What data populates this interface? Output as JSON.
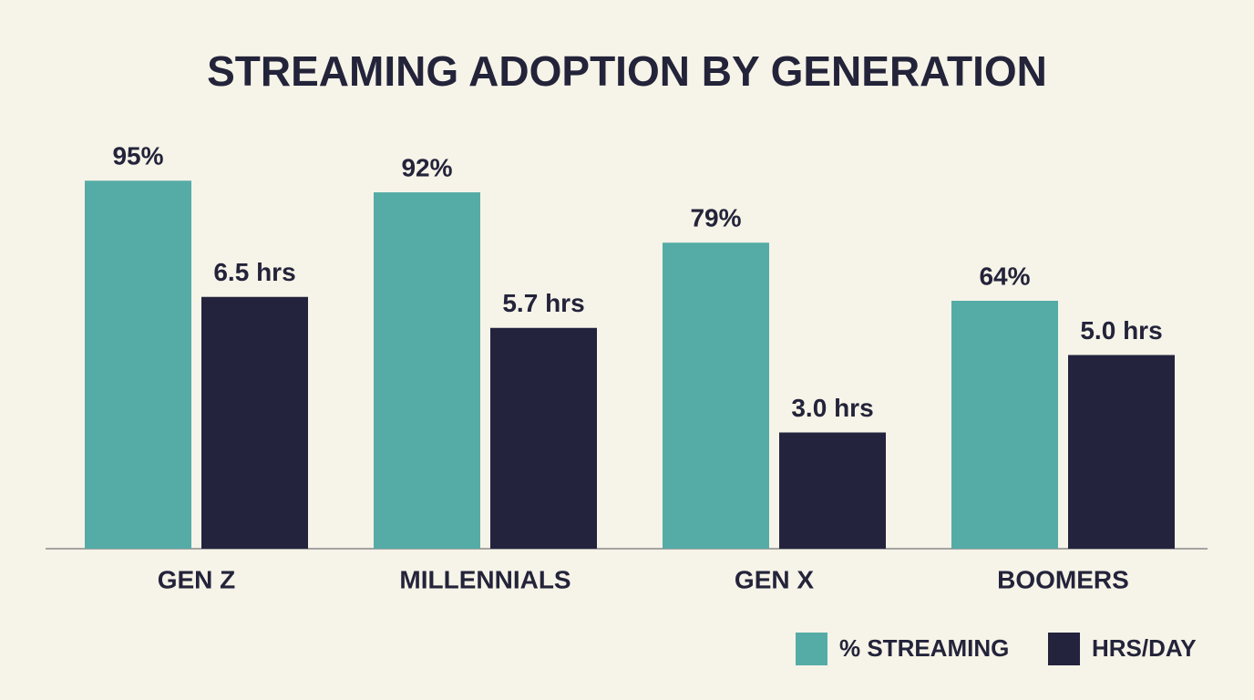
{
  "chart_data": {
    "type": "bar",
    "title": "STREAMING ADOPTION BY GENERATION",
    "categories": [
      "GEN Z",
      "MILLENNIALS",
      "GEN X",
      "BOOMERS"
    ],
    "series": [
      {
        "name": "% STREAMING",
        "color": "#55aca6",
        "values": [
          95,
          92,
          79,
          64
        ],
        "value_labels": [
          "95%",
          "92%",
          "79%",
          "64%"
        ]
      },
      {
        "name": "HRS/DAY",
        "color": "#23233d",
        "axis": "y2",
        "values": [
          6.5,
          5.7,
          3.0,
          5.0
        ],
        "value_labels": [
          "6.5 hrs",
          "5.7 hrs",
          "3.0 hrs",
          "5.0 hrs"
        ]
      }
    ],
    "ylim": [
      0,
      100
    ],
    "y2lim": [
      0,
      10
    ],
    "legend": "lower right"
  }
}
